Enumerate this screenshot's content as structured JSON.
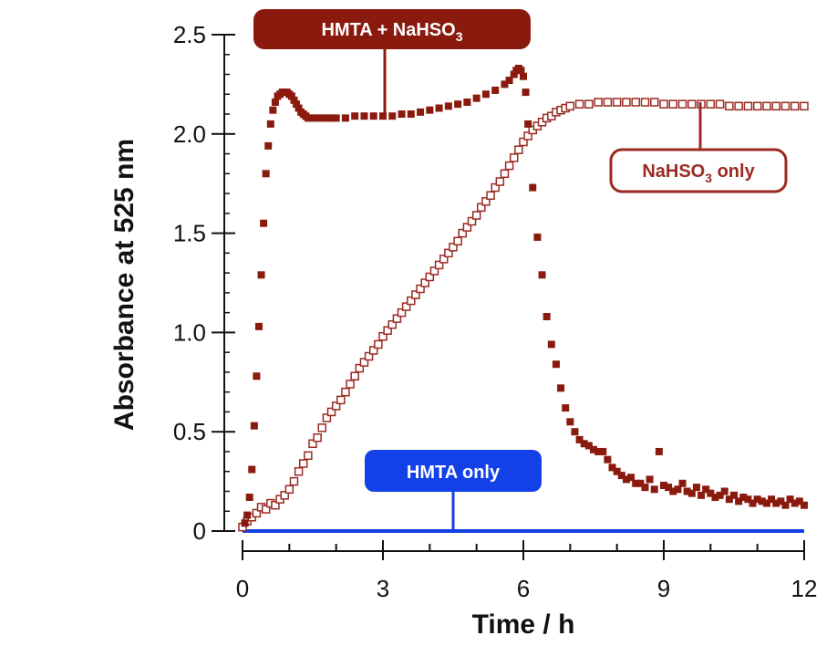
{
  "colors": {
    "hmta_nahso3": "#8b1a0e",
    "nahso3_only": "#9a2a22",
    "hmta_only": "#1440e8",
    "axis": "#111111"
  },
  "callouts": {
    "hmta_nahso3": {
      "main": "HMTA + NaHSO",
      "sub": "3",
      "tail": ""
    },
    "nahso3_only": {
      "main": "NaHSO",
      "sub": "3",
      "tail": " only"
    },
    "hmta_only": {
      "main": "HMTA only",
      "sub": "",
      "tail": ""
    }
  },
  "chart_data": {
    "type": "scatter",
    "xlabel": "Time / h",
    "ylabel": "Absorbance at 525 nm",
    "xlim": [
      0,
      12
    ],
    "ylim": [
      0,
      2.5
    ],
    "xticks": [
      0,
      3,
      6,
      9,
      12
    ],
    "yticks": [
      0,
      0.5,
      1.0,
      1.5,
      2.0,
      2.5
    ],
    "ytick_labels": [
      "0",
      "0.5",
      "1.0",
      "1.5",
      "2.0",
      "2.5"
    ],
    "grid": false,
    "series": [
      {
        "name": "HMTA + NaHSO3",
        "marker": "filled-square",
        "color": "#8b1a0e",
        "points": [
          [
            0.05,
            0.04
          ],
          [
            0.1,
            0.08
          ],
          [
            0.15,
            0.17
          ],
          [
            0.2,
            0.31
          ],
          [
            0.25,
            0.53
          ],
          [
            0.3,
            0.78
          ],
          [
            0.35,
            1.03
          ],
          [
            0.4,
            1.29
          ],
          [
            0.45,
            1.55
          ],
          [
            0.5,
            1.8
          ],
          [
            0.55,
            1.94
          ],
          [
            0.6,
            2.05
          ],
          [
            0.65,
            2.12
          ],
          [
            0.7,
            2.16
          ],
          [
            0.75,
            2.19
          ],
          [
            0.8,
            2.2
          ],
          [
            0.85,
            2.21
          ],
          [
            0.9,
            2.21
          ],
          [
            0.95,
            2.21
          ],
          [
            1.0,
            2.2
          ],
          [
            1.05,
            2.19
          ],
          [
            1.1,
            2.17
          ],
          [
            1.15,
            2.15
          ],
          [
            1.2,
            2.13
          ],
          [
            1.25,
            2.11
          ],
          [
            1.3,
            2.1
          ],
          [
            1.35,
            2.09
          ],
          [
            1.4,
            2.08
          ],
          [
            1.5,
            2.08
          ],
          [
            1.6,
            2.08
          ],
          [
            1.7,
            2.08
          ],
          [
            1.8,
            2.08
          ],
          [
            1.9,
            2.08
          ],
          [
            2.0,
            2.08
          ],
          [
            2.2,
            2.08
          ],
          [
            2.4,
            2.09
          ],
          [
            2.6,
            2.09
          ],
          [
            2.8,
            2.09
          ],
          [
            3.0,
            2.09
          ],
          [
            3.2,
            2.09
          ],
          [
            3.4,
            2.1
          ],
          [
            3.6,
            2.1
          ],
          [
            3.8,
            2.11
          ],
          [
            4.0,
            2.12
          ],
          [
            4.2,
            2.13
          ],
          [
            4.4,
            2.14
          ],
          [
            4.6,
            2.15
          ],
          [
            4.8,
            2.16
          ],
          [
            5.0,
            2.18
          ],
          [
            5.2,
            2.2
          ],
          [
            5.4,
            2.22
          ],
          [
            5.6,
            2.25
          ],
          [
            5.7,
            2.27
          ],
          [
            5.8,
            2.3
          ],
          [
            5.85,
            2.32
          ],
          [
            5.9,
            2.33
          ],
          [
            5.95,
            2.32
          ],
          [
            6.0,
            2.29
          ],
          [
            6.05,
            2.21
          ],
          [
            6.1,
            2.05
          ],
          [
            6.2,
            1.73
          ],
          [
            6.3,
            1.48
          ],
          [
            6.4,
            1.29
          ],
          [
            6.5,
            1.08
          ],
          [
            6.6,
            0.94
          ],
          [
            6.7,
            0.84
          ],
          [
            6.8,
            0.72
          ],
          [
            6.9,
            0.62
          ],
          [
            7.0,
            0.55
          ],
          [
            7.1,
            0.5
          ],
          [
            7.2,
            0.46
          ],
          [
            7.3,
            0.44
          ],
          [
            7.4,
            0.43
          ],
          [
            7.5,
            0.41
          ],
          [
            7.6,
            0.4
          ],
          [
            7.7,
            0.4
          ],
          [
            7.8,
            0.36
          ],
          [
            7.9,
            0.32
          ],
          [
            8.0,
            0.3
          ],
          [
            8.1,
            0.28
          ],
          [
            8.2,
            0.26
          ],
          [
            8.3,
            0.27
          ],
          [
            8.4,
            0.24
          ],
          [
            8.5,
            0.24
          ],
          [
            8.6,
            0.22
          ],
          [
            8.7,
            0.26
          ],
          [
            8.8,
            0.21
          ],
          [
            8.9,
            0.4
          ],
          [
            9.0,
            0.23
          ],
          [
            9.1,
            0.22
          ],
          [
            9.2,
            0.2
          ],
          [
            9.3,
            0.21
          ],
          [
            9.4,
            0.24
          ],
          [
            9.5,
            0.2
          ],
          [
            9.6,
            0.19
          ],
          [
            9.7,
            0.22
          ],
          [
            9.8,
            0.18
          ],
          [
            9.9,
            0.21
          ],
          [
            10.0,
            0.19
          ],
          [
            10.1,
            0.17
          ],
          [
            10.2,
            0.18
          ],
          [
            10.3,
            0.2
          ],
          [
            10.4,
            0.16
          ],
          [
            10.5,
            0.18
          ],
          [
            10.6,
            0.15
          ],
          [
            10.7,
            0.17
          ],
          [
            10.8,
            0.16
          ],
          [
            10.9,
            0.14
          ],
          [
            11.0,
            0.16
          ],
          [
            11.1,
            0.15
          ],
          [
            11.2,
            0.14
          ],
          [
            11.3,
            0.16
          ],
          [
            11.4,
            0.14
          ],
          [
            11.5,
            0.15
          ],
          [
            11.6,
            0.13
          ],
          [
            11.7,
            0.16
          ],
          [
            11.8,
            0.14
          ],
          [
            11.9,
            0.15
          ],
          [
            12.0,
            0.13
          ]
        ]
      },
      {
        "name": "NaHSO3 only",
        "marker": "open-square",
        "color": "#9a2a22",
        "points": [
          [
            0.0,
            0.02
          ],
          [
            0.1,
            0.05
          ],
          [
            0.2,
            0.07
          ],
          [
            0.3,
            0.09
          ],
          [
            0.4,
            0.12
          ],
          [
            0.5,
            0.11
          ],
          [
            0.6,
            0.14
          ],
          [
            0.7,
            0.13
          ],
          [
            0.8,
            0.16
          ],
          [
            0.9,
            0.18
          ],
          [
            1.0,
            0.21
          ],
          [
            1.1,
            0.25
          ],
          [
            1.2,
            0.3
          ],
          [
            1.3,
            0.34
          ],
          [
            1.4,
            0.38
          ],
          [
            1.5,
            0.44
          ],
          [
            1.6,
            0.47
          ],
          [
            1.7,
            0.52
          ],
          [
            1.8,
            0.57
          ],
          [
            1.9,
            0.6
          ],
          [
            2.0,
            0.63
          ],
          [
            2.1,
            0.66
          ],
          [
            2.2,
            0.7
          ],
          [
            2.3,
            0.74
          ],
          [
            2.4,
            0.78
          ],
          [
            2.5,
            0.82
          ],
          [
            2.6,
            0.85
          ],
          [
            2.7,
            0.88
          ],
          [
            2.8,
            0.91
          ],
          [
            2.9,
            0.94
          ],
          [
            3.0,
            0.98
          ],
          [
            3.1,
            1.01
          ],
          [
            3.2,
            1.04
          ],
          [
            3.3,
            1.07
          ],
          [
            3.4,
            1.1
          ],
          [
            3.5,
            1.13
          ],
          [
            3.6,
            1.16
          ],
          [
            3.7,
            1.19
          ],
          [
            3.8,
            1.22
          ],
          [
            3.9,
            1.25
          ],
          [
            4.0,
            1.28
          ],
          [
            4.1,
            1.31
          ],
          [
            4.2,
            1.34
          ],
          [
            4.3,
            1.37
          ],
          [
            4.4,
            1.4
          ],
          [
            4.5,
            1.43
          ],
          [
            4.6,
            1.46
          ],
          [
            4.7,
            1.5
          ],
          [
            4.8,
            1.53
          ],
          [
            4.9,
            1.56
          ],
          [
            5.0,
            1.59
          ],
          [
            5.1,
            1.63
          ],
          [
            5.2,
            1.66
          ],
          [
            5.3,
            1.69
          ],
          [
            5.4,
            1.73
          ],
          [
            5.5,
            1.76
          ],
          [
            5.6,
            1.8
          ],
          [
            5.7,
            1.84
          ],
          [
            5.8,
            1.88
          ],
          [
            5.9,
            1.92
          ],
          [
            6.0,
            1.96
          ],
          [
            6.1,
            1.99
          ],
          [
            6.2,
            2.02
          ],
          [
            6.3,
            2.04
          ],
          [
            6.4,
            2.06
          ],
          [
            6.5,
            2.08
          ],
          [
            6.6,
            2.09
          ],
          [
            6.7,
            2.11
          ],
          [
            6.8,
            2.12
          ],
          [
            6.9,
            2.13
          ],
          [
            7.0,
            2.14
          ],
          [
            7.2,
            2.15
          ],
          [
            7.4,
            2.15
          ],
          [
            7.6,
            2.16
          ],
          [
            7.8,
            2.16
          ],
          [
            8.0,
            2.16
          ],
          [
            8.2,
            2.16
          ],
          [
            8.4,
            2.16
          ],
          [
            8.6,
            2.16
          ],
          [
            8.8,
            2.16
          ],
          [
            9.0,
            2.15
          ],
          [
            9.2,
            2.15
          ],
          [
            9.4,
            2.15
          ],
          [
            9.6,
            2.15
          ],
          [
            9.8,
            2.15
          ],
          [
            10.0,
            2.15
          ],
          [
            10.2,
            2.15
          ],
          [
            10.4,
            2.14
          ],
          [
            10.6,
            2.14
          ],
          [
            10.8,
            2.14
          ],
          [
            11.0,
            2.14
          ],
          [
            11.2,
            2.14
          ],
          [
            11.4,
            2.14
          ],
          [
            11.6,
            2.14
          ],
          [
            11.8,
            2.14
          ],
          [
            12.0,
            2.14
          ]
        ]
      },
      {
        "name": "HMTA only",
        "marker": "line",
        "color": "#1440e8",
        "points": [
          [
            0.0,
            0.0
          ],
          [
            12.0,
            0.0
          ]
        ]
      }
    ]
  }
}
